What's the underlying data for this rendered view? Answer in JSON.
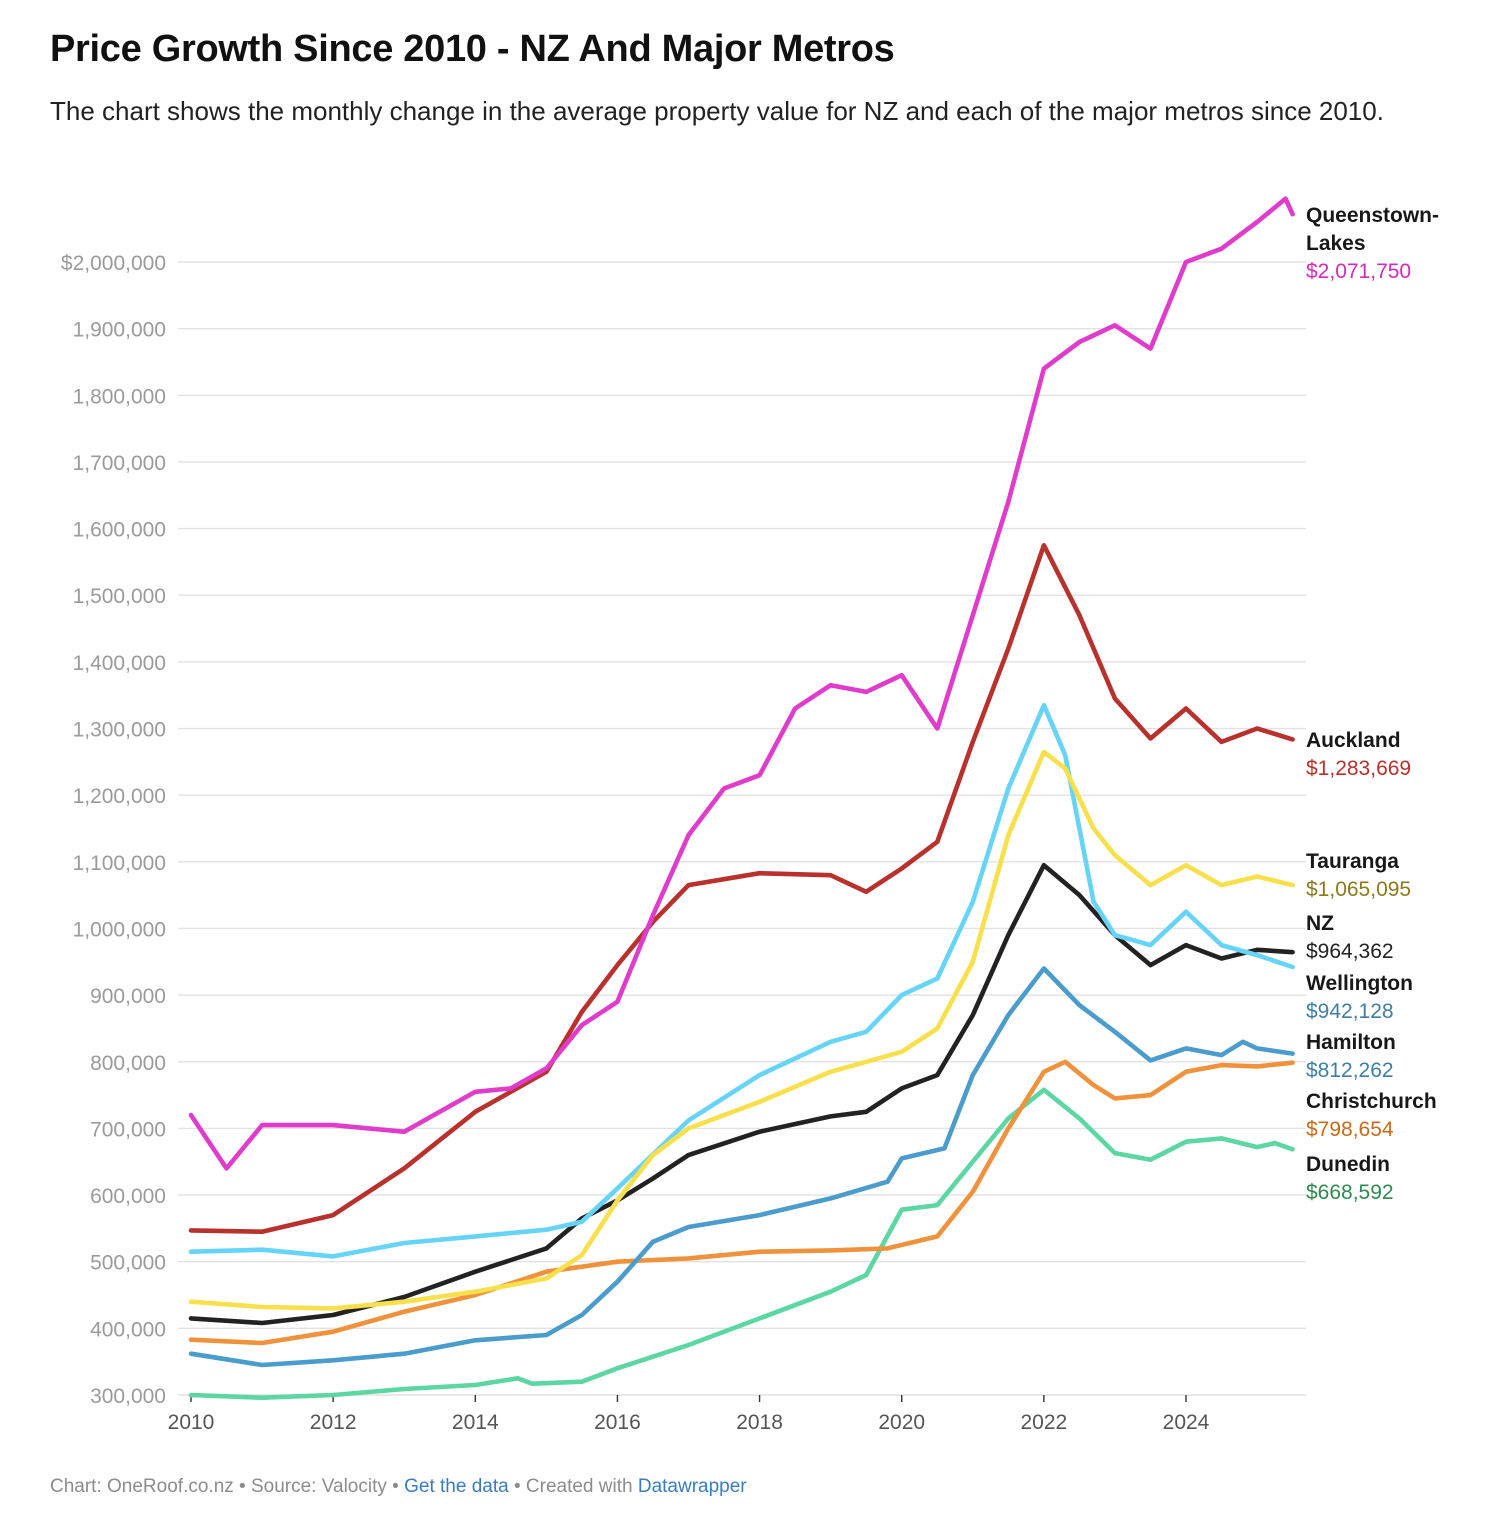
{
  "header": {
    "title": "Price Growth Since 2010 - NZ And Major Metros",
    "subtitle": "The chart shows the monthly change in the average property value for NZ and each of the major metros since 2010."
  },
  "footer": {
    "chart_by": "Chart: OneRoof.co.nz",
    "sep1": " • ",
    "source": "Source: Valocity",
    "sep2": " • ",
    "get_data": "Get the data",
    "sep3": " • ",
    "created_with": "Created with ",
    "datawrapper": "Datawrapper"
  },
  "chart_data": {
    "type": "line",
    "title": "Price Growth Since 2010 - NZ And Major Metros",
    "xlabel": "",
    "ylabel": "",
    "xlim": [
      2010,
      2025.5
    ],
    "ylim": [
      300000,
      2050000
    ],
    "grid": true,
    "y_ticks": [
      300000,
      400000,
      500000,
      600000,
      700000,
      800000,
      900000,
      1000000,
      1100000,
      1200000,
      1300000,
      1400000,
      1500000,
      1600000,
      1700000,
      1800000,
      1900000,
      2000000
    ],
    "y_tick_labels": [
      "300,000",
      "400,000",
      "500,000",
      "600,000",
      "700,000",
      "800,000",
      "900,000",
      "1,000,000",
      "1,100,000",
      "1,200,000",
      "1,300,000",
      "1,400,000",
      "1,500,000",
      "1,600,000",
      "1,700,000",
      "1,800,000",
      "1,900,000",
      "$2,000,000"
    ],
    "x_ticks": [
      2010,
      2012,
      2014,
      2016,
      2018,
      2020,
      2022,
      2024
    ],
    "x_tick_labels": [
      "2010",
      "2012",
      "2014",
      "2016",
      "2018",
      "2020",
      "2022",
      "2024"
    ],
    "series": [
      {
        "name": "Dunedin",
        "label": [
          "Dunedin"
        ],
        "end_value": "$668,592",
        "color": "#5cd6a3",
        "label_color": "#2f8a4f",
        "x": [
          2010,
          2011,
          2012,
          2013,
          2014,
          2014.6,
          2014.8,
          2015.5,
          2016,
          2017,
          2018,
          2019,
          2019.5,
          2020,
          2020.5,
          2021,
          2021.5,
          2022,
          2022.5,
          2023,
          2023.5,
          2024,
          2024.5,
          2025,
          2025.25,
          2025.5
        ],
        "values": [
          300000,
          296000,
          300000,
          309000,
          315000,
          325000,
          317000,
          320000,
          340000,
          375000,
          415000,
          455000,
          480000,
          578000,
          585000,
          650000,
          715000,
          758000,
          715000,
          663000,
          653000,
          680000,
          685000,
          672000,
          678000,
          668592
        ]
      },
      {
        "name": "Christchurch",
        "label": [
          "Christchurch"
        ],
        "end_value": "$798,654",
        "color": "#f0923c",
        "label_color": "#c96a1a",
        "x": [
          2010,
          2011,
          2012,
          2013,
          2014,
          2015,
          2016,
          2017,
          2018,
          2019,
          2019.8,
          2020.5,
          2021,
          2021.5,
          2022,
          2022.3,
          2022.7,
          2023,
          2023.5,
          2024,
          2024.5,
          2025,
          2025.5
        ],
        "values": [
          383000,
          378000,
          395000,
          425000,
          450000,
          485000,
          500000,
          505000,
          515000,
          517000,
          520000,
          538000,
          605000,
          700000,
          785000,
          800000,
          765000,
          745000,
          750000,
          785000,
          795000,
          793000,
          798654
        ]
      },
      {
        "name": "Hamilton",
        "label": [
          "Hamilton"
        ],
        "end_value": "$812,262",
        "color": "#4a9ccc",
        "label_color": "#3f7fa3",
        "x": [
          2010,
          2011,
          2012,
          2013,
          2014,
          2015,
          2015.5,
          2016,
          2016.5,
          2017,
          2018,
          2019,
          2019.8,
          2020,
          2020.6,
          2021,
          2021.5,
          2022,
          2022.5,
          2023,
          2023.5,
          2024,
          2024.5,
          2024.8,
          2025,
          2025.5
        ],
        "values": [
          362000,
          345000,
          352000,
          362000,
          382000,
          390000,
          420000,
          470000,
          530000,
          552000,
          570000,
          595000,
          620000,
          655000,
          670000,
          780000,
          870000,
          940000,
          885000,
          845000,
          802000,
          820000,
          810000,
          830000,
          820000,
          812262
        ]
      },
      {
        "name": "NZ",
        "label": [
          "NZ"
        ],
        "end_value": "$964,362",
        "color": "#222222",
        "label_color": "#222222",
        "x": [
          2010,
          2011,
          2012,
          2013,
          2014,
          2015,
          2015.5,
          2016,
          2016.5,
          2017,
          2018,
          2019,
          2019.5,
          2020,
          2020.5,
          2021,
          2021.5,
          2022,
          2022.5,
          2023,
          2023.5,
          2024,
          2024.5,
          2025,
          2025.5
        ],
        "values": [
          415000,
          408000,
          420000,
          447000,
          485000,
          520000,
          565000,
          592000,
          625000,
          660000,
          695000,
          718000,
          725000,
          760000,
          780000,
          870000,
          990000,
          1095000,
          1050000,
          990000,
          945000,
          975000,
          955000,
          968000,
          964362
        ]
      },
      {
        "name": "Wellington",
        "label": [
          "Wellington"
        ],
        "end_value": "$942,128",
        "color": "#66d4f7",
        "label_color": "#3f7fa3",
        "x": [
          2010,
          2011,
          2012,
          2013,
          2014,
          2015,
          2015.5,
          2016,
          2017,
          2018,
          2019,
          2019.5,
          2020,
          2020.5,
          2021,
          2021.5,
          2022,
          2022.3,
          2022.7,
          2023,
          2023.5,
          2024,
          2024.5,
          2025,
          2025.5
        ],
        "values": [
          515000,
          518000,
          508000,
          528000,
          538000,
          548000,
          560000,
          610000,
          712000,
          780000,
          830000,
          845000,
          900000,
          925000,
          1040000,
          1210000,
          1335000,
          1260000,
          1040000,
          990000,
          975000,
          1025000,
          975000,
          960000,
          942128
        ]
      },
      {
        "name": "Tauranga",
        "label": [
          "Tauranga"
        ],
        "end_value": "$1,065,095",
        "color": "#f7e04b",
        "label_color": "#8a7a1e",
        "x": [
          2010,
          2011,
          2012,
          2013,
          2014,
          2015,
          2015.5,
          2016,
          2016.5,
          2017,
          2018,
          2019,
          2020,
          2020.5,
          2021,
          2021.5,
          2022,
          2022.3,
          2022.7,
          2023,
          2023.5,
          2024,
          2024.5,
          2025,
          2025.5
        ],
        "values": [
          440000,
          432000,
          430000,
          440000,
          455000,
          475000,
          510000,
          592000,
          660000,
          700000,
          740000,
          785000,
          815000,
          850000,
          950000,
          1140000,
          1265000,
          1240000,
          1150000,
          1110000,
          1065000,
          1095000,
          1065000,
          1078000,
          1065095
        ]
      },
      {
        "name": "Auckland",
        "label": [
          "Auckland"
        ],
        "end_value": "$1,283,669",
        "color": "#b8312c",
        "label_color": "#b8312c",
        "x": [
          2010,
          2011,
          2012,
          2013,
          2014,
          2015,
          2015.5,
          2016,
          2016.5,
          2017,
          2018,
          2019,
          2019.5,
          2020,
          2020.5,
          2021,
          2021.5,
          2022,
          2022.5,
          2023,
          2023.5,
          2024,
          2024.5,
          2025,
          2025.5
        ],
        "values": [
          547000,
          545000,
          570000,
          640000,
          725000,
          785000,
          875000,
          945000,
          1010000,
          1065000,
          1083000,
          1080000,
          1055000,
          1090000,
          1130000,
          1280000,
          1420000,
          1575000,
          1470000,
          1345000,
          1285000,
          1330000,
          1280000,
          1300000,
          1283669
        ]
      },
      {
        "name": "Queenstown-Lakes",
        "label": [
          "Queenstown-",
          "Lakes"
        ],
        "end_value": "$2,071,750",
        "color": "#e03ccc",
        "label_color": "#d42bb8",
        "x": [
          2010,
          2010.5,
          2011,
          2012,
          2013,
          2014,
          2014.5,
          2015,
          2015.5,
          2016,
          2016.5,
          2017,
          2017.5,
          2018,
          2018.5,
          2019,
          2019.5,
          2020,
          2020.5,
          2021,
          2021.5,
          2022,
          2022.5,
          2023,
          2023.5,
          2024,
          2024.5,
          2025,
          2025.4,
          2025.5
        ],
        "values": [
          720000,
          640000,
          705000,
          705000,
          695000,
          755000,
          760000,
          790000,
          855000,
          890000,
          1020000,
          1140000,
          1210000,
          1230000,
          1330000,
          1365000,
          1355000,
          1380000,
          1300000,
          1470000,
          1640000,
          1840000,
          1880000,
          1905000,
          1870000,
          2000000,
          2020000,
          2060000,
          2095000,
          2071750
        ]
      }
    ]
  }
}
